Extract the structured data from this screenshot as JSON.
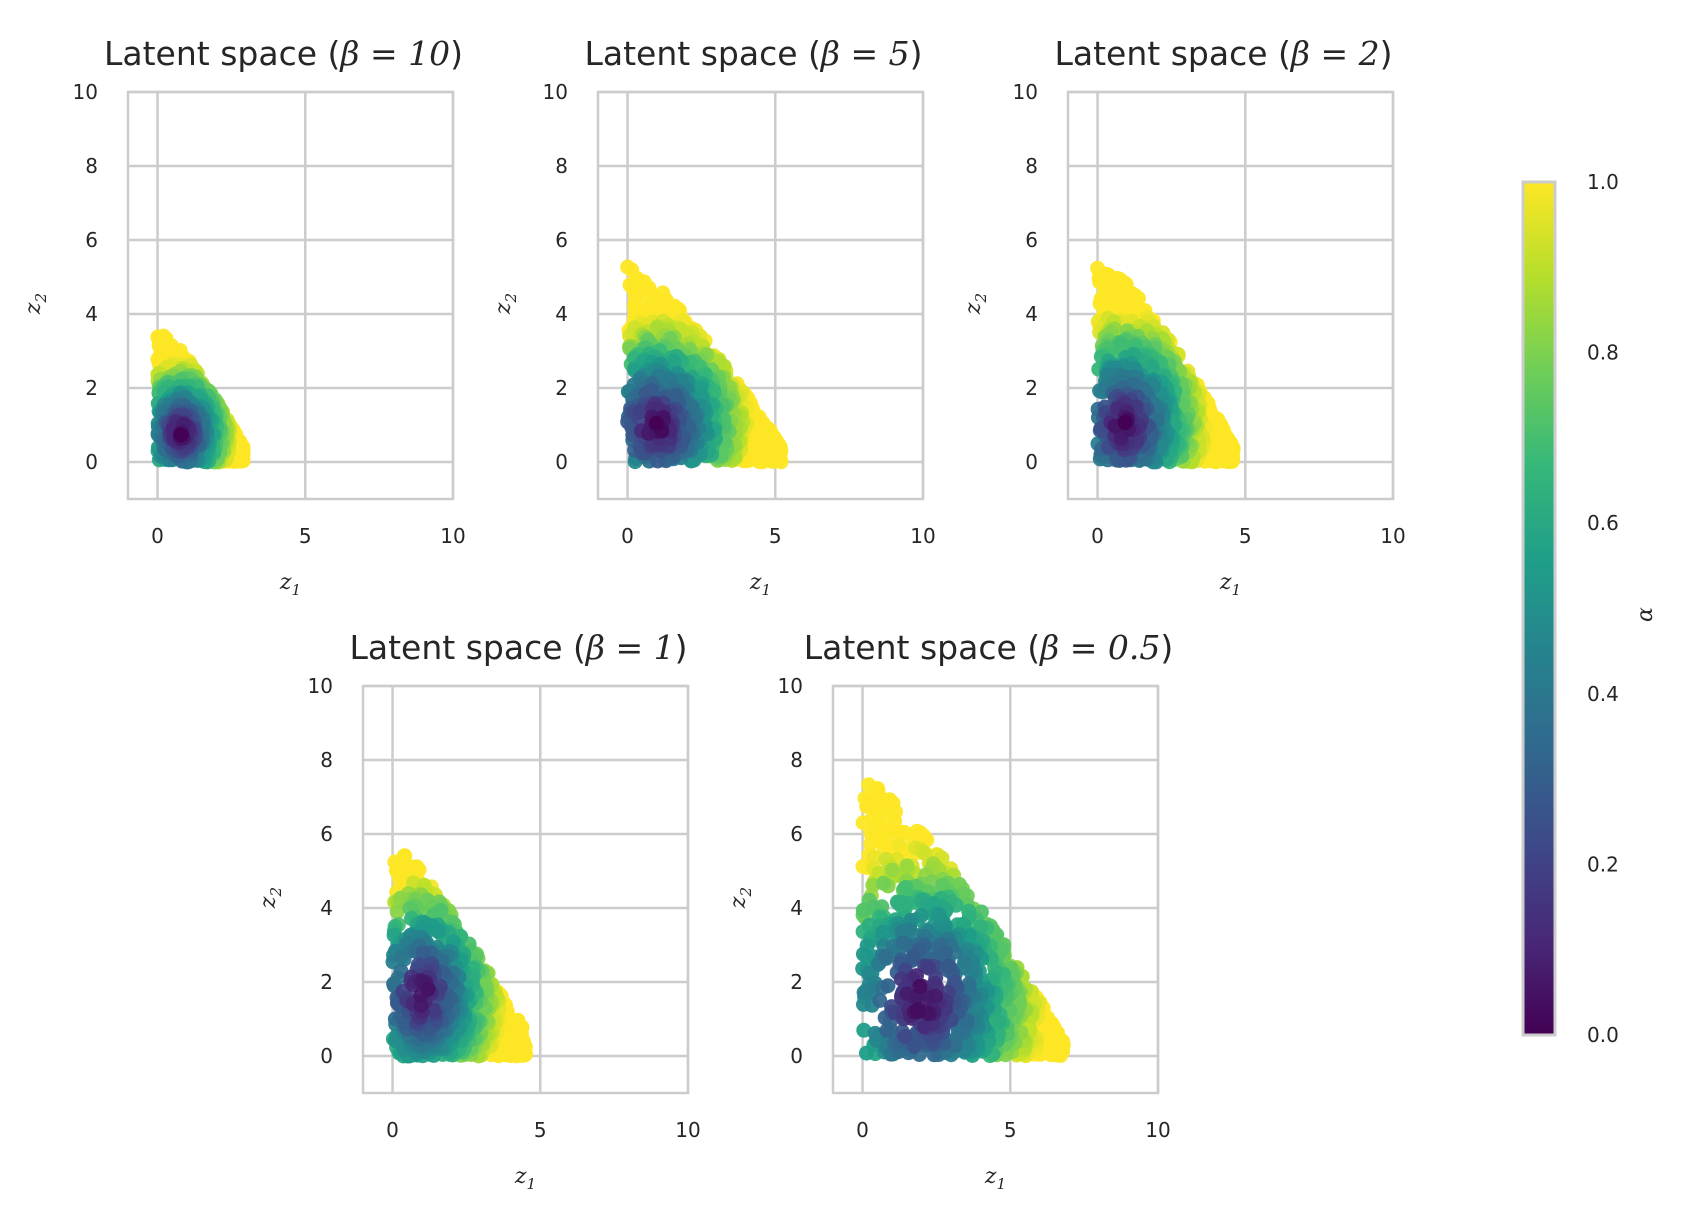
{
  "chart_data": [
    {
      "type": "scatter",
      "title_prefix": "Latent space (",
      "title_math": "β = 10",
      "title_suffix": ")",
      "xlabel": "z",
      "xlabel_sub": "1",
      "ylabel": "z",
      "ylabel_sub": "2",
      "xlim": [
        -1,
        10
      ],
      "ylim": [
        -1,
        10
      ],
      "xticks": [
        0,
        5,
        10
      ],
      "yticks": [
        0,
        2,
        4,
        6,
        8,
        10
      ],
      "color_by": "α",
      "grid": true,
      "regions": [
        {
          "x": [
            0,
            1.5
          ],
          "y_min": 0,
          "y_max": 3.2,
          "x_max": 2.9,
          "note": "triangular cluster"
        }
      ],
      "cluster": {
        "x_max": 2.9,
        "y_max": 3.2,
        "center": [
          0.8,
          0.8
        ]
      }
    },
    {
      "type": "scatter",
      "title_prefix": "Latent space (",
      "title_math": "β = 5",
      "title_suffix": ")",
      "xlabel": "z",
      "xlabel_sub": "1",
      "ylabel": "z",
      "ylabel_sub": "2",
      "xlim": [
        -1,
        10
      ],
      "ylim": [
        -1,
        10
      ],
      "xticks": [
        0,
        5,
        10
      ],
      "yticks": [
        0,
        2,
        4,
        6,
        8,
        10
      ],
      "color_by": "α",
      "grid": true,
      "cluster": {
        "x_max": 5.2,
        "y_max": 4.9,
        "center": [
          1.0,
          1.0
        ]
      }
    },
    {
      "type": "scatter",
      "title_prefix": "Latent space (",
      "title_math": "β = 2",
      "title_suffix": ")",
      "xlabel": "z",
      "xlabel_sub": "1",
      "ylabel": "z",
      "ylabel_sub": "2",
      "xlim": [
        -1,
        10
      ],
      "ylim": [
        -1,
        10
      ],
      "xticks": [
        0,
        5,
        10
      ],
      "yticks": [
        0,
        2,
        4,
        6,
        8,
        10
      ],
      "color_by": "α",
      "grid": true,
      "cluster": {
        "x_max": 4.6,
        "y_max": 5.1,
        "center": [
          0.9,
          1.0
        ]
      }
    },
    {
      "type": "scatter",
      "title_prefix": "Latent space (",
      "title_math": "β = 1",
      "title_suffix": ")",
      "xlabel": "z",
      "xlabel_sub": "1",
      "ylabel": "z",
      "ylabel_sub": "2",
      "xlim": [
        -1,
        10
      ],
      "ylim": [
        -1,
        10
      ],
      "xticks": [
        0,
        5,
        10
      ],
      "yticks": [
        0,
        2,
        4,
        6,
        8,
        10
      ],
      "color_by": "α",
      "grid": true,
      "cluster": {
        "x_max": 4.5,
        "y_max": 5.3,
        "center": [
          1.0,
          1.7
        ],
        "lower_band": {
          "x_max": 4.4,
          "y_max": 1.0
        }
      }
    },
    {
      "type": "scatter",
      "title_prefix": "Latent space (",
      "title_math": "β = 0.5",
      "title_suffix": ")",
      "xlabel": "z",
      "xlabel_sub": "1",
      "ylabel": "z",
      "ylabel_sub": "2",
      "xlim": [
        -1,
        10
      ],
      "ylim": [
        -1,
        10
      ],
      "xticks": [
        0,
        5,
        10
      ],
      "yticks": [
        0,
        2,
        4,
        6,
        8,
        10
      ],
      "color_by": "α",
      "grid": true,
      "cluster": {
        "x_max": 6.8,
        "y_max": 7.1,
        "center": [
          2.0,
          1.5
        ]
      }
    }
  ],
  "colorbar": {
    "label": "α",
    "range": [
      0.0,
      1.0
    ],
    "ticks": [
      "0.0",
      "0.2",
      "0.4",
      "0.6",
      "0.8",
      "1.0"
    ],
    "colormap": "viridis",
    "colors": [
      "#440154",
      "#482878",
      "#3e4989",
      "#31688e",
      "#26828e",
      "#1f9e89",
      "#35b779",
      "#6ece58",
      "#b5de2b",
      "#fde725"
    ]
  },
  "colors": {
    "grid": "#cccccc",
    "axes_edge": "#cccccc",
    "text": "#262626"
  }
}
